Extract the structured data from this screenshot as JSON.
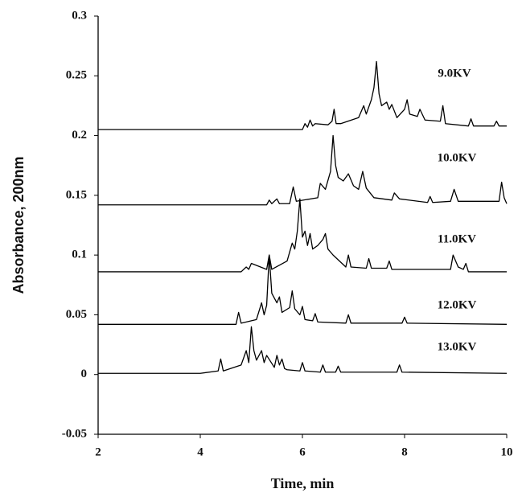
{
  "chart_data": {
    "type": "line",
    "xlabel": "Time, min",
    "ylabel": "Absorbance, 200nm",
    "xlim": [
      2,
      10
    ],
    "xticks": [
      2,
      4,
      6,
      8,
      10
    ],
    "ylim": [
      -0.05,
      0.3
    ],
    "yticks": [
      -0.05,
      0,
      0.05,
      0.1,
      0.15,
      0.2,
      0.25,
      0.3
    ],
    "series": [
      {
        "name": "9.0KV",
        "color": "#000000",
        "x": [
          2,
          6.0,
          6.05,
          6.1,
          6.15,
          6.2,
          6.25,
          6.5,
          6.58,
          6.62,
          6.66,
          6.75,
          7.1,
          7.2,
          7.25,
          7.35,
          7.4,
          7.45,
          7.5,
          7.55,
          7.65,
          7.7,
          7.75,
          7.85,
          8.0,
          8.05,
          8.1,
          8.25,
          8.3,
          8.4,
          8.7,
          8.75,
          8.8,
          9.25,
          9.3,
          9.35,
          9.75,
          9.8,
          9.85,
          10
        ],
        "values": [
          0.205,
          0.205,
          0.21,
          0.207,
          0.213,
          0.208,
          0.21,
          0.209,
          0.212,
          0.222,
          0.21,
          0.21,
          0.215,
          0.225,
          0.218,
          0.23,
          0.24,
          0.262,
          0.235,
          0.225,
          0.228,
          0.222,
          0.226,
          0.215,
          0.222,
          0.23,
          0.218,
          0.216,
          0.222,
          0.213,
          0.212,
          0.225,
          0.21,
          0.208,
          0.214,
          0.208,
          0.208,
          0.212,
          0.208,
          0.208
        ]
      },
      {
        "name": "10.0KV",
        "color": "#000000",
        "x": [
          2,
          5.3,
          5.35,
          5.4,
          5.5,
          5.55,
          5.75,
          5.82,
          5.88,
          6.3,
          6.35,
          6.45,
          6.55,
          6.6,
          6.65,
          6.7,
          6.8,
          6.9,
          7.0,
          7.1,
          7.18,
          7.25,
          7.4,
          7.75,
          7.8,
          7.9,
          8.45,
          8.5,
          8.55,
          8.9,
          8.97,
          9.05,
          9.85,
          9.9,
          9.95,
          10
        ],
        "values": [
          0.142,
          0.142,
          0.146,
          0.143,
          0.147,
          0.143,
          0.143,
          0.157,
          0.145,
          0.148,
          0.16,
          0.155,
          0.17,
          0.2,
          0.175,
          0.165,
          0.162,
          0.168,
          0.158,
          0.155,
          0.17,
          0.156,
          0.148,
          0.146,
          0.152,
          0.147,
          0.144,
          0.149,
          0.144,
          0.145,
          0.155,
          0.145,
          0.145,
          0.161,
          0.148,
          0.143
        ]
      },
      {
        "name": "11.0KV",
        "color": "#000000",
        "x": [
          2,
          4.8,
          4.9,
          4.95,
          5.0,
          5.3,
          5.35,
          5.4,
          5.7,
          5.8,
          5.85,
          5.9,
          5.95,
          6.0,
          6.05,
          6.1,
          6.15,
          6.2,
          6.3,
          6.4,
          6.45,
          6.5,
          6.6,
          6.85,
          6.9,
          6.95,
          7.25,
          7.3,
          7.35,
          7.65,
          7.7,
          7.75,
          8.9,
          8.95,
          9.05,
          9.15,
          9.2,
          9.25,
          10
        ],
        "values": [
          0.086,
          0.086,
          0.09,
          0.088,
          0.093,
          0.088,
          0.1,
          0.088,
          0.095,
          0.11,
          0.105,
          0.12,
          0.147,
          0.115,
          0.12,
          0.108,
          0.118,
          0.105,
          0.108,
          0.113,
          0.118,
          0.105,
          0.1,
          0.09,
          0.1,
          0.09,
          0.089,
          0.097,
          0.089,
          0.089,
          0.095,
          0.088,
          0.088,
          0.1,
          0.09,
          0.088,
          0.093,
          0.086,
          0.086
        ]
      },
      {
        "name": "12.0KV",
        "color": "#000000",
        "x": [
          2,
          4.7,
          4.75,
          4.8,
          5.1,
          5.2,
          5.25,
          5.3,
          5.35,
          5.4,
          5.5,
          5.55,
          5.6,
          5.75,
          5.8,
          5.85,
          5.95,
          6.0,
          6.05,
          6.2,
          6.25,
          6.3,
          6.85,
          6.9,
          6.95,
          7.95,
          8.0,
          8.05,
          10
        ],
        "values": [
          0.042,
          0.042,
          0.052,
          0.043,
          0.046,
          0.06,
          0.05,
          0.058,
          0.1,
          0.068,
          0.06,
          0.065,
          0.052,
          0.056,
          0.07,
          0.055,
          0.05,
          0.057,
          0.046,
          0.045,
          0.051,
          0.044,
          0.043,
          0.05,
          0.043,
          0.043,
          0.048,
          0.043,
          0.042
        ]
      },
      {
        "name": "13.0KV",
        "color": "#000000",
        "x": [
          2,
          4.0,
          4.35,
          4.4,
          4.45,
          4.8,
          4.9,
          4.95,
          5.0,
          5.05,
          5.1,
          5.2,
          5.25,
          5.3,
          5.45,
          5.5,
          5.55,
          5.6,
          5.65,
          5.7,
          5.95,
          6.0,
          6.05,
          6.35,
          6.4,
          6.45,
          6.65,
          6.7,
          6.75,
          7.85,
          7.9,
          7.95,
          10
        ],
        "values": [
          0.001,
          0.001,
          0.003,
          0.013,
          0.003,
          0.008,
          0.02,
          0.01,
          0.04,
          0.02,
          0.012,
          0.02,
          0.01,
          0.016,
          0.006,
          0.016,
          0.008,
          0.013,
          0.005,
          0.004,
          0.003,
          0.01,
          0.003,
          0.002,
          0.008,
          0.002,
          0.002,
          0.007,
          0.002,
          0.002,
          0.008,
          0.002,
          0.001
        ]
      }
    ]
  }
}
